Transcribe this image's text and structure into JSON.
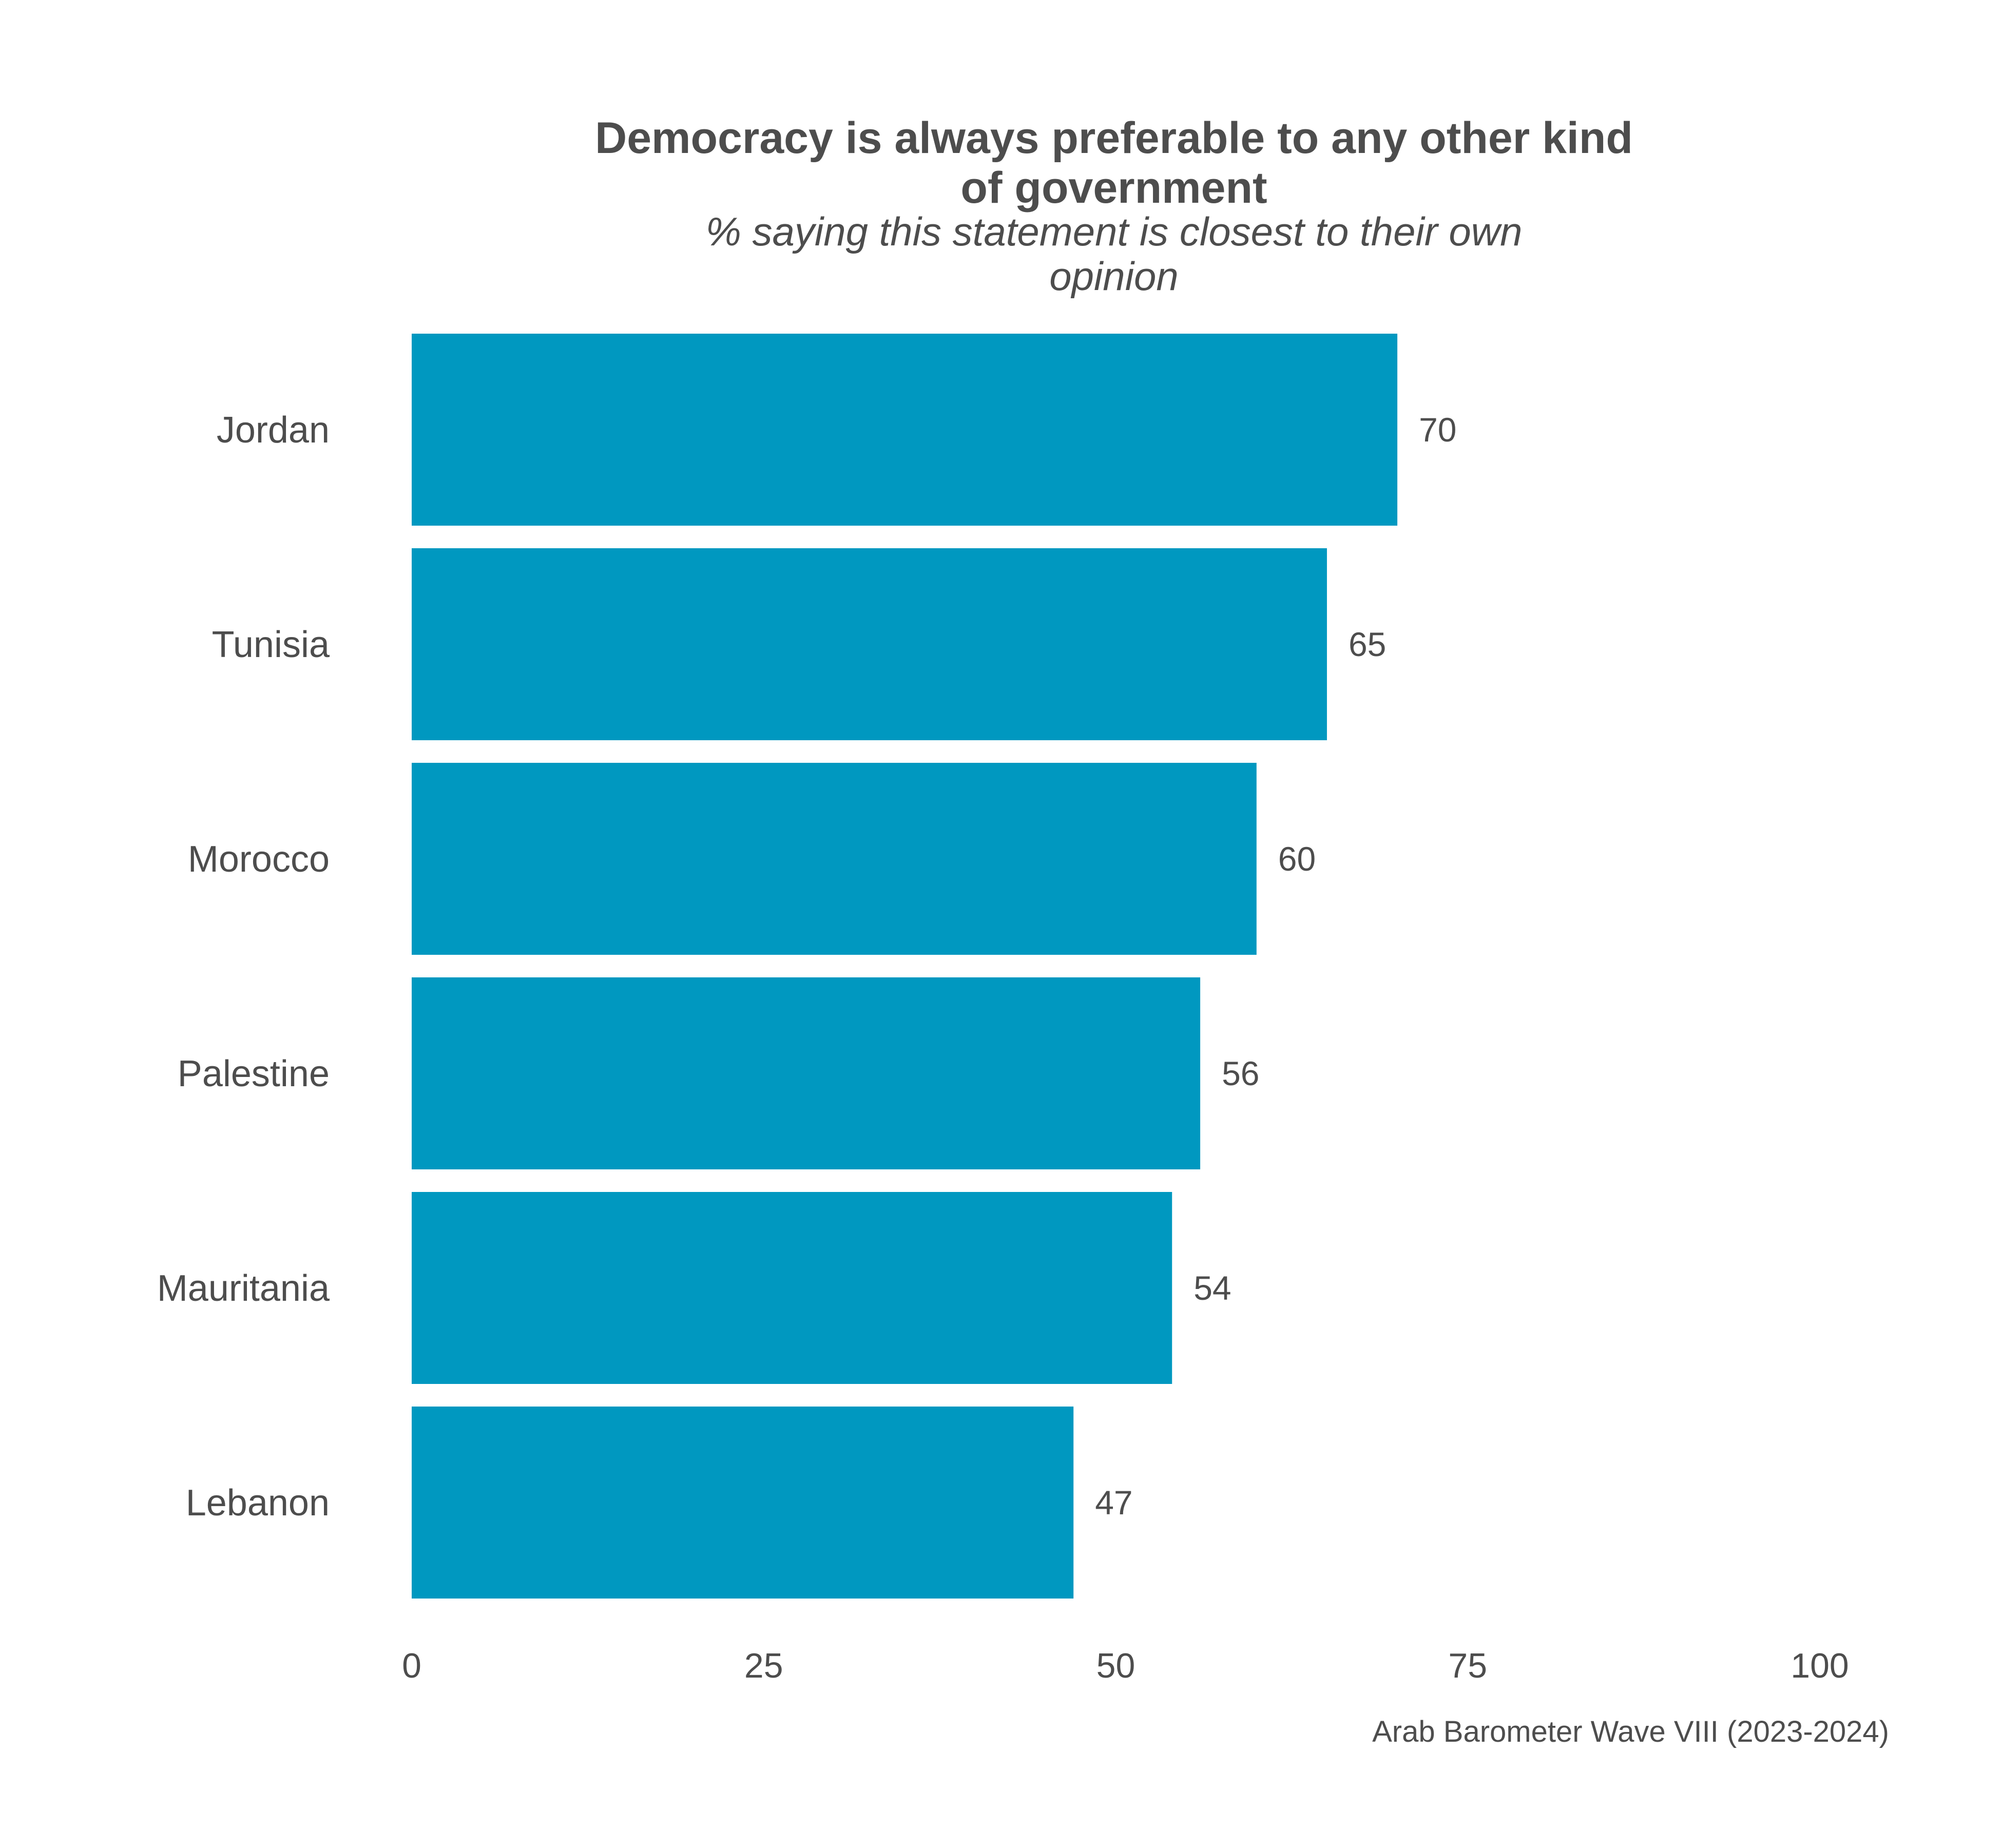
{
  "chart_data": {
    "type": "bar",
    "orientation": "horizontal",
    "title_lines": [
      "Democracy is always preferable to any other kind",
      "of government"
    ],
    "subtitle_lines": [
      "% saying this statement is closest to their own",
      "opinion"
    ],
    "categories": [
      "Jordan",
      "Tunisia",
      "Morocco",
      "Palestine",
      "Mauritania",
      "Lebanon"
    ],
    "values": [
      70,
      65,
      60,
      56,
      54,
      47
    ],
    "value_labels": [
      "70",
      "65",
      "60",
      "56",
      "54",
      "47"
    ],
    "xlim": [
      0,
      100
    ],
    "x_ticks": [
      0,
      25,
      50,
      75,
      100
    ],
    "x_tick_labels": [
      "0",
      "25",
      "50",
      "75",
      "100"
    ],
    "xlabel": "",
    "ylabel": "",
    "grid": false,
    "legend": "none",
    "bar_color": "#0098c0",
    "caption": "Arab Barometer Wave VIII (2023-2024)"
  }
}
